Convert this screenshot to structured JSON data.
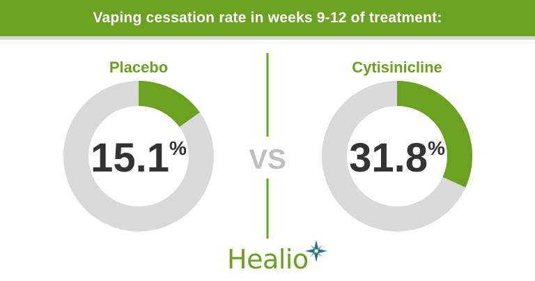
{
  "banner": {
    "title": "Vaping cessation rate in weeks 9-12 of treatment:"
  },
  "chart_data": {
    "type": "pie",
    "title": "Vaping cessation rate in weeks 9-12 of treatment:",
    "series": [
      {
        "name": "Placebo",
        "value": 15.1,
        "unit": "%"
      },
      {
        "name": "Cytisinicline",
        "value": 31.8,
        "unit": "%"
      }
    ],
    "separator": "VS"
  },
  "colors": {
    "accent": "#6aa121",
    "track": "#d9d9d9",
    "value_text": "#333333",
    "vs_text": "#bfbfbf",
    "star": "#1f6fa8"
  },
  "logo": {
    "text": "Healio"
  }
}
